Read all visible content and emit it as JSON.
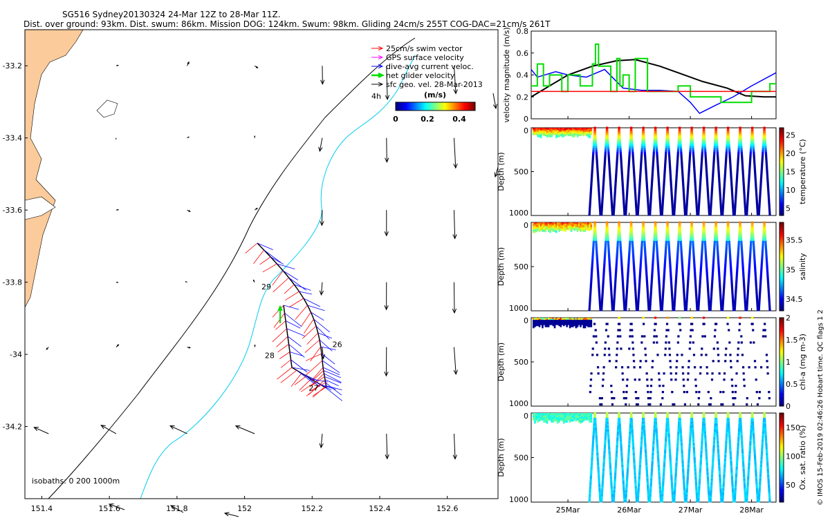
{
  "header": {
    "title_line1": "SG516 Sydney20130324 24-Mar 12Z to 28-Mar 11Z.",
    "title_line2": "Dist. over ground: 93km. Dist. swum: 86km. Mission DOG: 124km. Swum: 98km. Gliding 24cm/s 255T COG-DAC=21cm/s 261T"
  },
  "footer": {
    "credit": "© IMOS 15-Feb-2019 02:46:26 Hobart time. QC flags 1 2"
  },
  "colors": {
    "land": "#FBCB9B",
    "swim": "#FF0000",
    "gps": "#FF00FF",
    "dac": "#0000FF",
    "net": "#00DD00",
    "isobath_200": "#00CCEE",
    "isobath_1000": "#000000"
  },
  "chart_data": [
    {
      "type": "map",
      "name": "map",
      "xlim": [
        151.35,
        152.75
      ],
      "ylim": [
        -34.4,
        -33.1
      ],
      "xticks": [
        "151.4",
        "151.6",
        "151.8",
        "152",
        "152.2",
        "152.4",
        "152.6"
      ],
      "yticks": [
        "-33.2",
        "-33.4",
        "-33.6",
        "-33.8",
        "-34",
        "-34.2"
      ],
      "legend": [
        {
          "label": "25cm/s swim vector",
          "color": "#FF0000"
        },
        {
          "label": "GPS surface velocity",
          "color": "#FF00FF"
        },
        {
          "label": "dive-avg current veloc.",
          "color": "#0000FF"
        },
        {
          "label": "net glider velocity",
          "color": "#00DD00"
        },
        {
          "label": "sfc geo. vel. 28-Mar-2013",
          "color": "#000000"
        }
      ],
      "legend_note": "4h",
      "colorbar": {
        "label": "(m/s)",
        "ticks": [
          "0",
          "0.2",
          "0.4"
        ],
        "range": [
          0,
          0.5
        ]
      },
      "isobath_label": "isobaths: 0    200   1000m",
      "day_labels": [
        {
          "text": "29",
          "lon": 152.05,
          "lat": -33.82
        },
        {
          "text": "26",
          "lon": 152.26,
          "lat": -33.98
        },
        {
          "text": "28",
          "lon": 152.06,
          "lat": -34.01
        },
        {
          "text": "27",
          "lon": 152.19,
          "lat": -34.1
        }
      ]
    },
    {
      "type": "line",
      "name": "velocity",
      "ylabel": "velocity magnitude (m/s)",
      "ylim": [
        0,
        0.8
      ],
      "yticks": [
        "0",
        "0.2",
        "0.4",
        "0.6",
        "0.8"
      ],
      "xlim": [
        24.4,
        28.4
      ],
      "series": [
        {
          "name": "black",
          "color": "#000000",
          "x": [
            24.4,
            24.7,
            25.0,
            25.4,
            25.8,
            26.1,
            26.5,
            26.8,
            27.2,
            27.6,
            27.9,
            28.2,
            28.4
          ],
          "y": [
            0.2,
            0.3,
            0.4,
            0.48,
            0.53,
            0.54,
            0.48,
            0.42,
            0.34,
            0.28,
            0.21,
            0.2,
            0.2
          ]
        },
        {
          "name": "blue",
          "color": "#0000FF",
          "x": [
            24.4,
            24.5,
            24.8,
            25.0,
            25.3,
            25.6,
            25.9,
            26.2,
            26.5,
            26.8,
            27.0,
            27.15,
            27.4,
            27.7,
            28.0,
            28.4
          ],
          "y": [
            0.45,
            0.38,
            0.43,
            0.4,
            0.38,
            0.45,
            0.28,
            0.26,
            0.26,
            0.25,
            0.15,
            0.05,
            0.12,
            0.2,
            0.3,
            0.42
          ]
        },
        {
          "name": "green",
          "color": "#00DD00",
          "x": [
            24.4,
            24.5,
            24.6,
            24.7,
            24.9,
            25.0,
            25.2,
            25.4,
            25.45,
            25.5,
            25.7,
            25.8,
            25.85,
            25.9,
            26.0,
            26.1,
            26.3,
            26.5,
            26.8,
            27.0,
            27.2,
            27.5,
            27.8,
            28.0,
            28.3,
            28.4
          ],
          "y": [
            0.3,
            0.5,
            0.3,
            0.4,
            0.25,
            0.4,
            0.3,
            0.5,
            0.68,
            0.48,
            0.25,
            0.55,
            0.3,
            0.4,
            0.25,
            0.55,
            0.25,
            0.25,
            0.3,
            0.2,
            0.2,
            0.15,
            0.15,
            0.25,
            0.32,
            0.32
          ]
        },
        {
          "name": "red",
          "color": "#FF0000",
          "x": [
            24.4,
            28.4
          ],
          "y": [
            0.25,
            0.25
          ]
        }
      ]
    },
    {
      "type": "scatter",
      "name": "temperature",
      "ylabel": "Depth (m)",
      "clabel": "temperature (°C)",
      "cticks": [
        "5",
        "10",
        "15",
        "20",
        "25"
      ],
      "crange": [
        3,
        27
      ],
      "yticks": [
        "0",
        "500",
        "1000"
      ],
      "ylim": [
        0,
        1000
      ]
    },
    {
      "type": "scatter",
      "name": "salinity",
      "ylabel": "Depth (m)",
      "clabel": "salinity",
      "cticks": [
        "34.5",
        "35",
        "35.5"
      ],
      "crange": [
        34.3,
        35.8
      ],
      "yticks": [
        "0",
        "500",
        "1000"
      ],
      "ylim": [
        0,
        1000
      ]
    },
    {
      "type": "scatter",
      "name": "chla",
      "ylabel": "Depth (m)",
      "clabel": "chl-a (mg m-3)",
      "cticks": [
        "0",
        "0.5",
        "1",
        "1.5",
        "2"
      ],
      "crange": [
        0,
        2
      ],
      "yticks": [
        "0",
        "500",
        "1000"
      ],
      "ylim": [
        0,
        1000
      ]
    },
    {
      "type": "scatter",
      "name": "oxygen",
      "ylabel": "Depth (m)",
      "clabel": "Ox. sat. ratio (%)",
      "cticks": [
        "50",
        "100",
        "150"
      ],
      "crange": [
        20,
        175
      ],
      "yticks": [
        "0",
        "500",
        "1000"
      ],
      "ylim": [
        0,
        1000
      ],
      "xticks": [
        "25Mar",
        "26Mar",
        "27Mar",
        "28Mar"
      ]
    }
  ]
}
